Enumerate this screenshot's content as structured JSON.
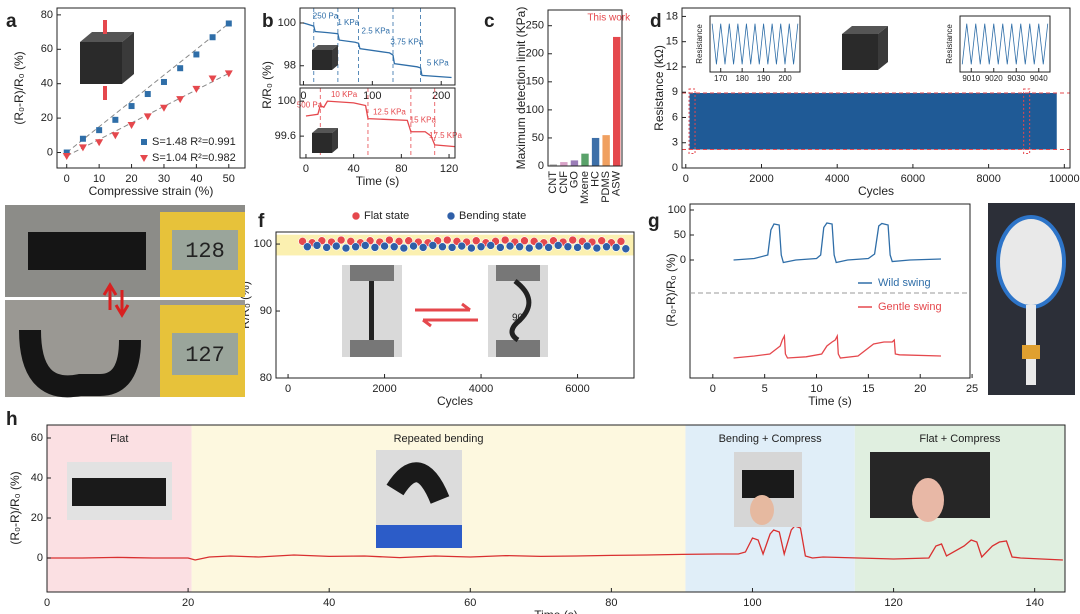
{
  "chart_data": [
    {
      "type": "scatter",
      "panel": "a",
      "xlabel": "Compressive strain (%)",
      "ylabel": "(R₀-R)/R₀ (%)",
      "xlim": [
        -3,
        55
      ],
      "ylim": [
        -9,
        84
      ],
      "xticks": [
        0,
        10,
        20,
        30,
        40,
        50
      ],
      "yticks": [
        0,
        20,
        40,
        60,
        80
      ],
      "series": [
        {
          "name": "S=1.48 R²=0.991",
          "marker": "square",
          "color": "#2f6ea8",
          "x": [
            0,
            5,
            10,
            15,
            20,
            25,
            30,
            35,
            40,
            45,
            50
          ],
          "values": [
            0,
            8,
            13,
            19,
            27,
            34,
            41,
            49,
            57,
            67,
            75
          ]
        },
        {
          "name": "S=1.04 R²=0.982",
          "marker": "triangle",
          "color": "#e5484d",
          "x": [
            0,
            5,
            10,
            15,
            20,
            25,
            30,
            35,
            40,
            45,
            50
          ],
          "values": [
            -2,
            3,
            6,
            10,
            16,
            21,
            26,
            31,
            37,
            43,
            46
          ]
        }
      ]
    },
    {
      "type": "line",
      "panel": "b",
      "ylabel": "R/R₀ (%)",
      "xlim": [
        -5,
        220
      ],
      "ylim": [
        97.1,
        100.7
      ],
      "xticks": [
        0,
        100,
        200
      ],
      "yticks": [
        98,
        100
      ],
      "vlines": [
        15,
        50,
        80,
        130,
        170
      ],
      "series": [
        {
          "color": "#2f6ea8",
          "x": [
            0,
            5,
            15,
            17,
            35,
            50,
            52,
            75,
            80,
            82,
            125,
            130,
            132,
            165,
            170,
            172,
            215
          ],
          "values": [
            100,
            99.95,
            99.85,
            99.6,
            99.55,
            99.5,
            99.2,
            99.1,
            99.05,
            98.8,
            98.6,
            98.5,
            98.1,
            97.95,
            97.9,
            97.55,
            97.45
          ]
        }
      ],
      "annotations": [
        {
          "text": "250 Pa",
          "x": 32,
          "y": 100.3
        },
        {
          "text": "1 KPa",
          "x": 65,
          "y": 100.0
        },
        {
          "text": "2.5 KPa",
          "x": 105,
          "y": 99.6
        },
        {
          "text": "3.75 KPa",
          "x": 150,
          "y": 99.1
        },
        {
          "text": "5 KPa",
          "x": 195,
          "y": 98.1
        }
      ]
    },
    {
      "type": "line",
      "xlabel": "Time (s)",
      "xlim": [
        -5,
        125
      ],
      "ylim": [
        99.35,
        100.15
      ],
      "xticks": [
        0,
        40,
        80,
        120
      ],
      "yticks": [
        99.6,
        100
      ],
      "vlines": [
        12,
        52,
        88,
        108
      ],
      "series": [
        {
          "color": "#e5484d",
          "x": [
            0,
            10,
            12,
            15,
            18,
            40,
            50,
            52,
            85,
            88,
            100,
            105,
            108,
            125
          ],
          "values": [
            99.83,
            99.85,
            99.95,
            99.93,
            100.0,
            99.98,
            99.95,
            99.8,
            99.78,
            99.65,
            99.65,
            99.6,
            99.5,
            99.48
          ]
        }
      ],
      "annotations": [
        {
          "text": "500 Pa",
          "x": 3,
          "y": 99.95
        },
        {
          "text": "10 KPa",
          "x": 32,
          "y": 100.07
        },
        {
          "text": "12.5 KPa",
          "x": 70,
          "y": 99.87
        },
        {
          "text": "15 KPa",
          "x": 98,
          "y": 99.78
        },
        {
          "text": "17.5 KPa",
          "x": 117,
          "y": 99.6
        }
      ]
    },
    {
      "type": "bar",
      "panel": "c",
      "ylabel": "Maximum detection limit (KPa)",
      "categories": [
        "CNT",
        "CNF",
        "GO",
        "Mxene",
        "HC",
        "PDMS",
        "ASW"
      ],
      "values": [
        3,
        7,
        10,
        22,
        50,
        55,
        230
      ],
      "colors": [
        "#b5b5b5",
        "#d9a3c9",
        "#9b7db8",
        "#5aa26a",
        "#3d6fa8",
        "#f0a060",
        "#e5484d"
      ],
      "ylim": [
        0,
        278
      ],
      "yticks": [
        0,
        50,
        100,
        150,
        200,
        250
      ],
      "annotation": "This work"
    },
    {
      "type": "band",
      "panel": "d",
      "xlabel": "Cycles",
      "ylabel": "Resistance (kΩ)",
      "xlim": [
        -100,
        10150
      ],
      "ylim": [
        0,
        19
      ],
      "xticks": [
        0,
        2000,
        4000,
        6000,
        8000,
        10000
      ],
      "yticks": [
        0,
        3,
        6,
        9,
        12,
        15,
        18
      ],
      "x": [
        100,
        9800
      ],
      "upper": [
        8.9,
        8.9
      ],
      "lower": [
        2.2,
        2.2
      ],
      "color": "#1f5a96",
      "hlines": [
        2.2,
        8.9
      ],
      "highlights": [
        [
          165,
          207
        ],
        [
          9005,
          9045
        ]
      ]
    },
    {
      "type": "line",
      "ylabel": "Resistance",
      "xlim": [
        165,
        207
      ],
      "ylim": [
        1,
        10.5
      ],
      "xticks": [
        170,
        180,
        190,
        200
      ],
      "series": [
        {
          "color": "#2f6ea8",
          "x": [
            166,
            168,
            170,
            172,
            174,
            176,
            178,
            180,
            182,
            184,
            186,
            188,
            190,
            192,
            194,
            196,
            198,
            200,
            202,
            204,
            206
          ],
          "values": [
            9.2,
            2.3,
            9.2,
            2.3,
            9.2,
            2.3,
            9.2,
            2.3,
            9.2,
            2.3,
            9.2,
            2.3,
            9.2,
            2.3,
            9.2,
            2.3,
            9.2,
            2.3,
            9.2,
            2.3,
            9.2
          ]
        }
      ]
    },
    {
      "type": "line",
      "ylabel": "Resistance",
      "xlim": [
        9005,
        9045
      ],
      "ylim": [
        1,
        10.5
      ],
      "xticks": [
        9010,
        9020,
        9030,
        9040
      ],
      "series": [
        {
          "color": "#2f6ea8",
          "x": [
            9006,
            9008,
            9010,
            9012,
            9014,
            9016,
            9018,
            9020,
            9022,
            9024,
            9026,
            9028,
            9030,
            9032,
            9034,
            9036,
            9038,
            9040,
            9042,
            9044
          ],
          "values": [
            2.3,
            9.2,
            2.3,
            9.2,
            2.3,
            9.2,
            2.3,
            9.2,
            2.3,
            9.2,
            2.3,
            9.2,
            2.3,
            9.2,
            2.3,
            9.2,
            2.3,
            9.2,
            2.3,
            9.2
          ]
        }
      ]
    },
    {
      "type": "image",
      "panel": "e",
      "texts": [
        "128",
        "127"
      ]
    },
    {
      "type": "scatter",
      "panel": "f",
      "xlabel": "Cycles",
      "ylabel": "R/R₀ (%)",
      "xlim": [
        -250,
        7170
      ],
      "ylim": [
        80,
        101.8
      ],
      "xticks": [
        0,
        2000,
        4000,
        6000
      ],
      "yticks": [
        80,
        90,
        100
      ],
      "band": [
        98.3,
        101.4
      ],
      "angle_label": "90°",
      "series": [
        {
          "name": "Flat state",
          "marker": "circle",
          "color": "#e5484d",
          "x": [
            300,
            500,
            700,
            900,
            1100,
            1300,
            1500,
            1700,
            1900,
            2100,
            2300,
            2500,
            2700,
            2900,
            3100,
            3300,
            3500,
            3700,
            3900,
            4100,
            4300,
            4500,
            4700,
            4900,
            5100,
            5300,
            5500,
            5700,
            5900,
            6100,
            6300,
            6500,
            6700,
            6900
          ],
          "values": [
            100.4,
            100.2,
            100.5,
            100.3,
            100.6,
            100.4,
            100.2,
            100.5,
            100.3,
            100.6,
            100.4,
            100.5,
            100.3,
            100.2,
            100.5,
            100.6,
            100.4,
            100.3,
            100.5,
            100.2,
            100.4,
            100.6,
            100.3,
            100.5,
            100.4,
            100.2,
            100.5,
            100.3,
            100.6,
            100.4,
            100.3,
            100.5,
            100.2,
            100.4
          ]
        },
        {
          "name": "Bending state",
          "marker": "circle",
          "color": "#2f5fa8",
          "x": [
            400,
            600,
            800,
            1000,
            1200,
            1400,
            1600,
            1800,
            2000,
            2200,
            2400,
            2600,
            2800,
            3000,
            3200,
            3400,
            3600,
            3800,
            4000,
            4200,
            4400,
            4600,
            4800,
            5000,
            5200,
            5400,
            5600,
            5800,
            6000,
            6200,
            6400,
            6600,
            6800,
            7000
          ],
          "values": [
            99.6,
            99.8,
            99.5,
            99.7,
            99.4,
            99.6,
            99.8,
            99.5,
            99.7,
            99.6,
            99.4,
            99.7,
            99.5,
            99.8,
            99.6,
            99.5,
            99.7,
            99.4,
            99.6,
            99.8,
            99.5,
            99.7,
            99.6,
            99.4,
            99.7,
            99.5,
            99.8,
            99.6,
            99.5,
            99.7,
            99.4,
            99.6,
            99.5,
            99.3
          ]
        }
      ]
    },
    {
      "type": "line",
      "panel": "g",
      "xlim": [
        -2.2,
        24.8
      ],
      "ylim": [
        -56,
        112
      ],
      "yticks": [
        0,
        50,
        100
      ],
      "series": [
        {
          "name": "Wild swing",
          "color": "#2f6ea8",
          "x": [
            2,
            4,
            5.3,
            5.6,
            5.9,
            6.4,
            6.6,
            6.8,
            8,
            10,
            10.4,
            10.7,
            11,
            11.5,
            11.7,
            11.9,
            13,
            15,
            15.6,
            16,
            16.3,
            16.9,
            17.1,
            17.3,
            19,
            22
          ],
          "values": [
            0,
            3,
            10,
            60,
            72,
            70,
            10,
            -5,
            0,
            3,
            10,
            65,
            74,
            72,
            10,
            -5,
            0,
            3,
            12,
            68,
            73,
            70,
            10,
            -3,
            0,
            2
          ]
        }
      ]
    },
    {
      "type": "line",
      "xlabel": "Time (s)",
      "ylabel": "(R₀-R)/R₀ (%)",
      "xlim": [
        -2.2,
        24.8
      ],
      "ylim": [
        -50,
        150
      ],
      "xticks": [
        0,
        5,
        10,
        15,
        20,
        25
      ],
      "series": [
        {
          "name": "Gentle swing",
          "color": "#e5484d",
          "x": [
            2,
            4,
            5.5,
            6,
            6.5,
            6.7,
            6.9,
            7,
            7.2,
            9,
            10.5,
            11,
            11.5,
            11.8,
            12,
            12.1,
            12.3,
            14,
            15.5,
            16.5,
            17.3,
            17.5,
            17.6,
            18,
            22
          ],
          "values": [
            0,
            5,
            10,
            20,
            30,
            45,
            55,
            10,
            0,
            3,
            10,
            30,
            40,
            45,
            55,
            10,
            0,
            5,
            35,
            40,
            40,
            45,
            10,
            8,
            5
          ]
        }
      ]
    },
    {
      "type": "line",
      "panel": "h",
      "xlabel": "Time (s)",
      "ylabel": "(R₀-R)/R₀ (%)",
      "xlim": [
        0,
        144.3
      ],
      "ylim": [
        -17,
        66.5
      ],
      "xticks": [
        0,
        20,
        40,
        60,
        80,
        100,
        120,
        140
      ],
      "yticks": [
        0,
        20,
        40,
        60
      ],
      "regions": [
        {
          "label": "Flat",
          "x": [
            0,
            20.5
          ],
          "color": "#fbe0e3"
        },
        {
          "label": "Repeated bending",
          "x": [
            20.5,
            90.5
          ],
          "color": "#fdf8df"
        },
        {
          "label": "Bending + Compress",
          "x": [
            90.5,
            114.5
          ],
          "color": "#e0eef8"
        },
        {
          "label": "Flat + Compress",
          "x": [
            114.5,
            144.3
          ],
          "color": "#e0efe0"
        }
      ],
      "series": [
        {
          "color": "#d93030",
          "x": [
            0,
            5,
            10,
            15,
            20,
            21,
            23,
            26,
            30,
            35,
            40,
            45,
            50,
            55,
            60,
            65,
            70,
            75,
            80,
            85,
            90,
            95,
            98,
            99,
            100,
            100.8,
            101.5,
            102.5,
            103,
            103.8,
            104.5,
            105.5,
            106,
            106.8,
            107.5,
            108.5,
            110,
            115,
            120,
            125,
            126,
            126.8,
            127.5,
            130,
            131,
            131.8,
            132.5,
            134,
            135,
            136,
            136.8,
            138,
            144
          ],
          "values": [
            0,
            0,
            0.3,
            0,
            0,
            -1,
            0.5,
            1,
            0.5,
            1.5,
            0.8,
            1,
            0.2,
            1,
            0.5,
            1.2,
            0.8,
            1,
            1.3,
            1.5,
            1.8,
            2,
            2,
            3,
            10,
            9,
            2,
            12,
            14,
            13,
            2,
            14,
            16,
            15,
            1,
            0,
            0.5,
            0,
            -0.5,
            0,
            6,
            7,
            1,
            6,
            9,
            8,
            0.5,
            6,
            8,
            8.5,
            0.5,
            0,
            -1
          ]
        }
      ]
    }
  ]
}
